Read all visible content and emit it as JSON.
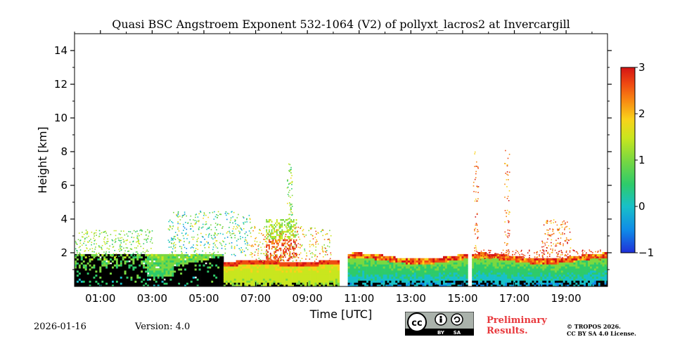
{
  "chart_data": {
    "type": "heatmap",
    "title": "Quasi BSC Angstroem Exponent 532-1064 (V2) of pollyxt_lacros2 at Invercargill",
    "xlabel": "Time [UTC]",
    "ylabel": "Height [km]",
    "xlim": [
      0.0,
      20.6
    ],
    "ylim": [
      0,
      15
    ],
    "x_tick_values": [
      1,
      3,
      5,
      7,
      9,
      11,
      13,
      15,
      17,
      19
    ],
    "x_tick_labels": [
      "01:00",
      "03:00",
      "05:00",
      "07:00",
      "09:00",
      "11:00",
      "13:00",
      "15:00",
      "17:00",
      "19:00"
    ],
    "y_tick_values": [
      2,
      4,
      6,
      8,
      10,
      12,
      14
    ],
    "y_tick_labels": [
      "2",
      "4",
      "6",
      "8",
      "10",
      "12",
      "14"
    ],
    "colorbar": {
      "range": [
        -1,
        3
      ],
      "tick_values": [
        -1,
        0,
        1,
        2,
        3
      ],
      "tick_labels": [
        "−1",
        "0",
        "1",
        "2",
        "3"
      ],
      "colormap": [
        "#1f30d8",
        "#0f8ae8",
        "#18c0c8",
        "#2ecb6a",
        "#7ad840",
        "#c9e61e",
        "#f9d21a",
        "#f88a12",
        "#ef4a12",
        "#d41414"
      ]
    },
    "data_gaps_hours": [
      [
        10.25,
        10.6
      ],
      [
        14.95,
        15.0
      ],
      [
        15.2,
        15.35
      ]
    ],
    "layers": [
      {
        "t_start": 0.0,
        "t_end": 2.8,
        "h_bottom": 0.0,
        "h_top": 1.9,
        "value_note": "low SNR / cloud (black)"
      },
      {
        "t_start": 2.8,
        "t_end": 5.7,
        "h_bottom": 0.0,
        "h_top": 1.9,
        "value_note": "low SNR / cloud (black)"
      },
      {
        "t_start": 5.7,
        "t_end": 10.25,
        "h_bottom": 0.2,
        "h_top": 1.5,
        "value_note": "aerosol layer ~0.8–1.2"
      },
      {
        "t_start": 7.4,
        "t_end": 8.6,
        "h_bottom": 1.5,
        "h_top": 4.0,
        "value_note": "elevated layer ~1.5–2.5"
      },
      {
        "t_start": 10.6,
        "t_end": 14.95,
        "h_bottom": 0.0,
        "h_top": 1.9,
        "value_note": "boundary layer ~0.5–2.5"
      },
      {
        "t_start": 15.35,
        "t_end": 20.6,
        "h_bottom": 0.0,
        "h_top": 1.9,
        "value_note": "boundary layer ~0.3–2.5"
      }
    ]
  },
  "footer": {
    "date": "2026-01-16",
    "version": "Version: 4.0",
    "preliminary_line1": "Preliminary",
    "preliminary_line2": "Results.",
    "copyright_line1": "© TROPOS 2026.",
    "copyright_line2": "CC BY SA 4.0 License.",
    "cc_by": "BY",
    "cc_sa": "SA",
    "cc_logo": "cc"
  }
}
